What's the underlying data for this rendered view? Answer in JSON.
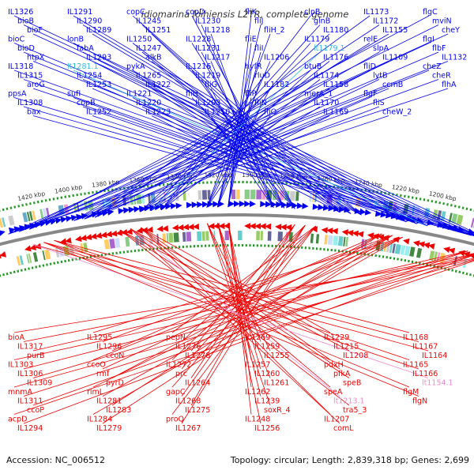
{
  "title": "Idiomarina loihiensis L2TR, complete genome",
  "footer": {
    "accession": "Accession: NC_006512",
    "summary": "Topology: circular; Length: 2,839,318 bp; Genes: 2,699"
  },
  "colors": {
    "forward": "#0000ee",
    "reverse": "#ee0000",
    "rna_forward": "#33bbdd",
    "rna_reverse": "#ee88cc",
    "backbone": "#888888",
    "gc_ticks": "#229922"
  },
  "kbp_ticks": [
    "1200 kbp",
    "1220 kbp",
    "1240 kbp",
    "1260 kbp",
    "1280 kbp",
    "1300 kbp",
    "1320 kbp",
    "1340 kbp",
    "1360 kbp",
    "1380 kbp",
    "1400 kbp",
    "1420 kbp"
  ],
  "genes_top": [
    "IL1326",
    "bioB",
    "bioF",
    "bioC",
    "bioD",
    "htpX",
    "IL1318",
    "IL1315",
    "aroG",
    "ppsA",
    "IL1308",
    "bax",
    "IL1291",
    "IL1290",
    "IL1289",
    "lonB",
    "fabA",
    "IL1293",
    "lt1281.1",
    "IL1254",
    "IL1253",
    "sufI",
    "copB",
    "IL1252",
    "copC",
    "IL1245",
    "IL1251",
    "IL1250",
    "IL1247",
    "alkB",
    "pykA",
    "IL1265",
    "IL1222",
    "IL1221",
    "IL1220",
    "IL1223",
    "copD",
    "IL1230",
    "IL1218",
    "IL1228",
    "IL1231",
    "IL1217",
    "IL1216",
    "IL1219",
    "fliG",
    "fliH",
    "IL1203",
    "IL1210",
    "fliK",
    "fliJ",
    "fliH_2",
    "fliE",
    "fliI",
    "IL1206",
    "hyfR",
    "rluD",
    "IL1182",
    "fliP",
    "fliN",
    "fliO",
    "clpB",
    "glnB",
    "IL1180",
    "IL1179",
    "lt1179.1",
    "IL1176",
    "btuB",
    "IL1174",
    "IL1158",
    "merA_1",
    "IL1170",
    "IL1169",
    "IL1173",
    "IL1172",
    "IL1155",
    "relE",
    "slpA",
    "IL1109",
    "fliD",
    "lytB",
    "ccmB",
    "flgF",
    "fliS",
    "cheW_2",
    "flgC",
    "mviN",
    "cheY",
    "flgI",
    "flbF",
    "IL1132",
    "cheZ",
    "cheR",
    "flhA"
  ],
  "genes_bottom": [
    "bioA",
    "IL1317",
    "purB",
    "IL1303",
    "IL1306",
    "IL1309",
    "mnmA",
    "IL1311",
    "ccoP",
    "acpD",
    "IL1294",
    "IL1295",
    "IL1296",
    "ccoN",
    "ccoO",
    "rmf",
    "pyrD",
    "rlmL",
    "IL1281",
    "IL1283",
    "IL1284",
    "IL1279",
    "pepN",
    "IL1276",
    "IL1278",
    "IL1272",
    "prc",
    "IL1264",
    "gapC",
    "IL1268",
    "IL1275",
    "proQ",
    "IL1267",
    "IL1269",
    "IL1259",
    "IL1255",
    "IL1257",
    "IL1260",
    "IL1261",
    "IL1262",
    "IL1239",
    "soxR_4",
    "IL1248",
    "IL1256",
    "IL1229",
    "IL1215",
    "IL1208",
    "pdxH",
    "pfkA",
    "speB",
    "speA",
    "lt1213.1",
    "tra5_3",
    "IL1207",
    "comL",
    "IL1168",
    "IL1167",
    "IL1164",
    "IL1165",
    "IL1166",
    "lt1154.1",
    "flgM",
    "flgN"
  ]
}
